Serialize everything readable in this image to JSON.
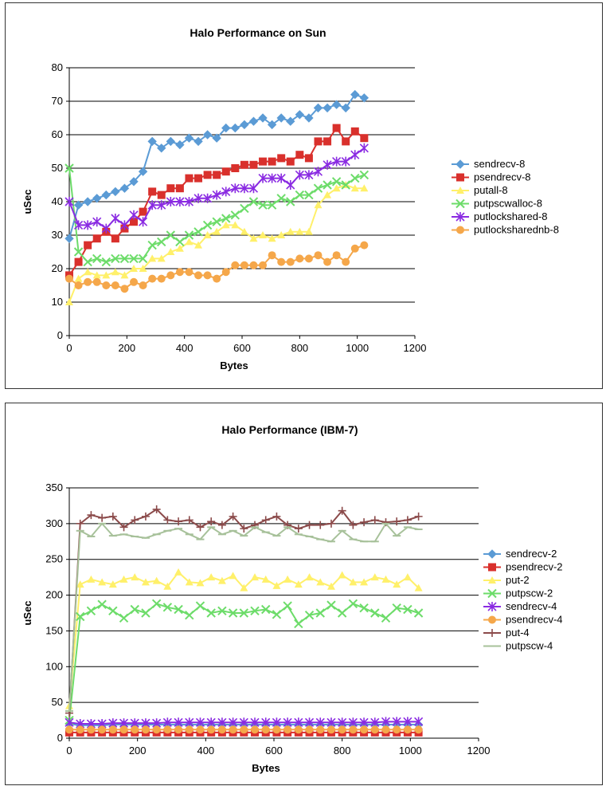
{
  "chart_data": [
    {
      "type": "line",
      "title": "Halo Performance on Sun",
      "xlabel": "Bytes",
      "ylabel": "uSec",
      "xlim": [
        0,
        1200
      ],
      "ylim": [
        0,
        80
      ],
      "xticks": [
        "0",
        "200",
        "400",
        "600",
        "800",
        "1000",
        "1200"
      ],
      "yticks": [
        "0",
        "10",
        "20",
        "30",
        "40",
        "50",
        "60",
        "70",
        "80"
      ],
      "grid": "horizontal",
      "legend_position": "right",
      "x": [
        0,
        32,
        64,
        96,
        128,
        160,
        192,
        224,
        256,
        288,
        320,
        352,
        384,
        416,
        448,
        480,
        512,
        544,
        576,
        608,
        640,
        672,
        704,
        736,
        768,
        800,
        832,
        864,
        896,
        928,
        960,
        992,
        1024
      ],
      "series": [
        {
          "name": "sendrecv-8",
          "color": "#5b9bd5",
          "marker": "diamond",
          "values": [
            29,
            39,
            40,
            41,
            42,
            43,
            44,
            46,
            49,
            58,
            56,
            58,
            57,
            59,
            58,
            60,
            59,
            62,
            62,
            63,
            64,
            65,
            63,
            65,
            64,
            66,
            65,
            68,
            68,
            69,
            68,
            72,
            71
          ]
        },
        {
          "name": "psendrecv-8",
          "color": "#d9302c",
          "marker": "square",
          "values": [
            18,
            22,
            27,
            29,
            31,
            29,
            32,
            34,
            37,
            43,
            42,
            44,
            44,
            47,
            47,
            48,
            48,
            49,
            50,
            51,
            51,
            52,
            52,
            53,
            52,
            54,
            53,
            58,
            58,
            62,
            58,
            61,
            59
          ]
        },
        {
          "name": "putall-8",
          "color": "#fff06a",
          "marker": "triangle",
          "values": [
            10,
            17,
            19,
            18,
            18,
            19,
            18,
            20,
            20,
            23,
            23,
            25,
            26,
            28,
            27,
            30,
            31,
            33,
            33,
            31,
            29,
            30,
            29,
            30,
            31,
            31,
            31,
            39,
            42,
            44,
            45,
            44,
            44
          ]
        },
        {
          "name": "putpscwalloc-8",
          "color": "#6ddc6a",
          "marker": "x",
          "values": [
            50,
            25,
            22,
            23,
            22,
            23,
            23,
            23,
            23,
            27,
            28,
            30,
            28,
            30,
            31,
            33,
            34,
            35,
            36,
            38,
            40,
            39,
            39,
            41,
            40,
            42,
            42,
            44,
            45,
            46,
            45,
            47,
            48
          ]
        },
        {
          "name": "putlockshared-8",
          "color": "#8a2be2",
          "marker": "star",
          "values": [
            40,
            33,
            33,
            34,
            32,
            35,
            33,
            36,
            34,
            39,
            39,
            40,
            40,
            40,
            41,
            41,
            42,
            43,
            44,
            44,
            44,
            47,
            47,
            47,
            45,
            48,
            48,
            49,
            51,
            52,
            52,
            54,
            56
          ]
        },
        {
          "name": "putlocksharednb-8",
          "color": "#f5a74a",
          "marker": "circle",
          "values": [
            17,
            15,
            16,
            16,
            15,
            15,
            14,
            16,
            15,
            17,
            17,
            18,
            19,
            19,
            18,
            18,
            17,
            19,
            21,
            21,
            21,
            21,
            24,
            22,
            22,
            23,
            23,
            24,
            22,
            24,
            22,
            26,
            27
          ]
        }
      ]
    },
    {
      "type": "line",
      "title": "Halo Performance (IBM-7)",
      "xlabel": "Bytes",
      "ylabel": "uSec",
      "xlim": [
        0,
        1200
      ],
      "ylim": [
        0,
        350
      ],
      "xticks": [
        "0",
        "200",
        "400",
        "600",
        "800",
        "1000",
        "1200"
      ],
      "yticks": [
        "0",
        "50",
        "100",
        "150",
        "200",
        "250",
        "300",
        "350"
      ],
      "grid": "horizontal",
      "legend_position": "right",
      "x": [
        0,
        32,
        64,
        96,
        128,
        160,
        192,
        224,
        256,
        288,
        320,
        352,
        384,
        416,
        448,
        480,
        512,
        544,
        576,
        608,
        640,
        672,
        704,
        736,
        768,
        800,
        832,
        864,
        896,
        928,
        960,
        992,
        1024
      ],
      "series": [
        {
          "name": "sendrecv-2",
          "color": "#5b9bd5",
          "marker": "diamond",
          "values": [
            20,
            18,
            18,
            18,
            19,
            19,
            19,
            19,
            19,
            19,
            19,
            19,
            19,
            19,
            19,
            19,
            19,
            19,
            19,
            19,
            19,
            19,
            19,
            19,
            19,
            19,
            19,
            19,
            19,
            19,
            19,
            19,
            19
          ]
        },
        {
          "name": "psendrecv-2",
          "color": "#d9302c",
          "marker": "square",
          "values": [
            8,
            8,
            8,
            8,
            8,
            8,
            8,
            8,
            8,
            8,
            8,
            8,
            8,
            8,
            8,
            8,
            8,
            8,
            8,
            8,
            8,
            8,
            8,
            8,
            8,
            8,
            8,
            8,
            8,
            8,
            8,
            8,
            8
          ]
        },
        {
          "name": "put-2",
          "color": "#fff06a",
          "marker": "triangle",
          "values": [
            45,
            215,
            222,
            218,
            215,
            222,
            225,
            218,
            220,
            212,
            232,
            218,
            217,
            225,
            220,
            227,
            210,
            225,
            222,
            213,
            222,
            215,
            225,
            218,
            212,
            228,
            218,
            218,
            225,
            222,
            215,
            225,
            210
          ]
        },
        {
          "name": "putpscw-2",
          "color": "#6ddc6a",
          "marker": "x",
          "values": [
            25,
            170,
            178,
            187,
            178,
            168,
            180,
            175,
            188,
            183,
            180,
            172,
            185,
            175,
            178,
            175,
            175,
            178,
            180,
            173,
            185,
            160,
            172,
            175,
            186,
            175,
            188,
            182,
            175,
            168,
            182,
            180,
            175
          ]
        },
        {
          "name": "sendrecv-4",
          "color": "#8a2be2",
          "marker": "star",
          "values": [
            22,
            20,
            20,
            20,
            21,
            21,
            21,
            21,
            21,
            22,
            22,
            22,
            22,
            22,
            22,
            22,
            22,
            22,
            22,
            22,
            22,
            22,
            22,
            22,
            22,
            22,
            22,
            22,
            22,
            23,
            23,
            23,
            23
          ]
        },
        {
          "name": "psendrecv-4",
          "color": "#f5a74a",
          "marker": "circle",
          "values": [
            12,
            12,
            12,
            12,
            12,
            12,
            12,
            12,
            12,
            12,
            12,
            12,
            12,
            12,
            12,
            12,
            12,
            12,
            12,
            12,
            12,
            12,
            12,
            12,
            12,
            12,
            12,
            12,
            12,
            12,
            12,
            12,
            12
          ]
        },
        {
          "name": "put-4",
          "color": "#8b4a4a",
          "marker": "plus",
          "values": [
            35,
            300,
            312,
            308,
            310,
            295,
            305,
            310,
            320,
            305,
            303,
            305,
            295,
            303,
            298,
            310,
            293,
            298,
            305,
            310,
            298,
            293,
            298,
            298,
            300,
            318,
            298,
            302,
            305,
            302,
            303,
            305,
            310
          ]
        },
        {
          "name": "putpscw-4",
          "color": "#a7c19a",
          "marker": "dash",
          "values": [
            38,
            290,
            282,
            300,
            283,
            285,
            282,
            280,
            285,
            290,
            293,
            285,
            278,
            295,
            285,
            290,
            283,
            295,
            288,
            283,
            295,
            285,
            282,
            278,
            275,
            290,
            278,
            275,
            275,
            300,
            283,
            295,
            292
          ]
        }
      ]
    }
  ]
}
